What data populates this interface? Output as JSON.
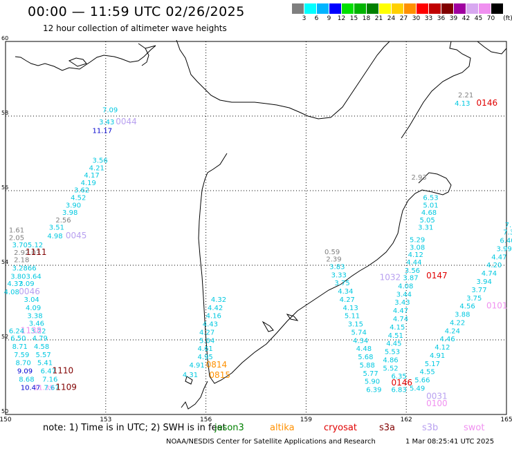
{
  "header": {
    "title": "00:00 — 11:59 UTC 02/26/2025",
    "subtitle": "12 hour collection of altimeter wave heights"
  },
  "color_scale": {
    "unit": "(ft)",
    "bins": [
      {
        "label": "3",
        "color": "#7f7f7f"
      },
      {
        "label": "6",
        "color": "#00ffff"
      },
      {
        "label": "9",
        "color": "#00b4ff"
      },
      {
        "label": "12",
        "color": "#0000ff"
      },
      {
        "label": "15",
        "color": "#00e000"
      },
      {
        "label": "18",
        "color": "#00b400"
      },
      {
        "label": "21",
        "color": "#008000"
      },
      {
        "label": "24",
        "color": "#ffff00"
      },
      {
        "label": "27",
        "color": "#ffd000"
      },
      {
        "label": "30",
        "color": "#ff9000"
      },
      {
        "label": "33",
        "color": "#ff0000"
      },
      {
        "label": "36",
        "color": "#c00000"
      },
      {
        "label": "39",
        "color": "#800000"
      },
      {
        "label": "42",
        "color": "#a000a0"
      },
      {
        "label": "45",
        "color": "#d8a8f0"
      },
      {
        "label": "70",
        "color": "#f090f0"
      },
      {
        "label": "",
        "color": "#000000"
      }
    ]
  },
  "axes": {
    "lon_labels": [
      "150",
      "153",
      "156",
      "159",
      "162",
      "165"
    ],
    "lat_labels": [
      "60",
      "58",
      "56",
      "54",
      "52",
      "50"
    ]
  },
  "observations": [
    {
      "text": "7.09",
      "lon": 152.9,
      "lat": 58.1,
      "color": "#00c8e0"
    },
    {
      "text": "3.43",
      "lon": 152.8,
      "lat": 57.78,
      "color": "#00c8e0"
    },
    {
      "text": "0044",
      "lon": 153.3,
      "lat": 57.78,
      "color": "#b8a0f0"
    },
    {
      "text": "11.17",
      "lon": 152.6,
      "lat": 57.55,
      "color": "#0000d0"
    },
    {
      "text": "3.56",
      "lon": 152.6,
      "lat": 56.75,
      "color": "#00c8e0"
    },
    {
      "text": "4.21",
      "lon": 152.5,
      "lat": 56.55,
      "color": "#00c8e0"
    },
    {
      "text": "4.17",
      "lon": 152.35,
      "lat": 56.35,
      "color": "#00c8e0"
    },
    {
      "text": "4.19",
      "lon": 152.25,
      "lat": 56.15,
      "color": "#00c8e0"
    },
    {
      "text": "3.62",
      "lon": 152.05,
      "lat": 55.95,
      "color": "#00c8e0"
    },
    {
      "text": "4.52",
      "lon": 151.95,
      "lat": 55.75,
      "color": "#00c8e0"
    },
    {
      "text": "3.90",
      "lon": 151.8,
      "lat": 55.55,
      "color": "#00c8e0"
    },
    {
      "text": "3.98",
      "lon": 151.7,
      "lat": 55.35,
      "color": "#00c8e0"
    },
    {
      "text": "2.56",
      "lon": 151.5,
      "lat": 55.15,
      "color": "#808080"
    },
    {
      "text": "3.51",
      "lon": 151.3,
      "lat": 54.95,
      "color": "#00c8e0"
    },
    {
      "text": "4.98",
      "lon": 151.25,
      "lat": 54.72,
      "color": "#00c8e0"
    },
    {
      "text": "0045",
      "lon": 151.8,
      "lat": 54.72,
      "color": "#b8a0f0"
    },
    {
      "text": "1.61",
      "lon": 150.1,
      "lat": 54.88,
      "color": "#808080"
    },
    {
      "text": "2.05",
      "lon": 150.1,
      "lat": 54.68,
      "color": "#808080"
    },
    {
      "text": "3.705.12",
      "lon": 150.2,
      "lat": 54.48,
      "color": "#00c8e0"
    },
    {
      "text": "2.92.03",
      "lon": 150.25,
      "lat": 54.28,
      "color": "#808080"
    },
    {
      "text": "1111",
      "lon": 150.6,
      "lat": 54.28,
      "color": "#800000"
    },
    {
      "text": "2.18",
      "lon": 150.25,
      "lat": 54.08,
      "color": "#808080"
    },
    {
      "text": "3.2866",
      "lon": 150.2,
      "lat": 53.86,
      "color": "#00c8e0"
    },
    {
      "text": "3.803.64",
      "lon": 150.15,
      "lat": 53.64,
      "color": "#00c8e0"
    },
    {
      "text": "4.37",
      "lon": 150.05,
      "lat": 53.44,
      "color": "#00c8e0"
    },
    {
      "text": "3.09",
      "lon": 150.4,
      "lat": 53.44,
      "color": "#00c8e0"
    },
    {
      "text": "4.08",
      "lon": 149.95,
      "lat": 53.22,
      "color": "#00c8e0"
    },
    {
      "text": "0046",
      "lon": 150.4,
      "lat": 53.22,
      "color": "#b8a0f0"
    },
    {
      "text": "3.04",
      "lon": 150.55,
      "lat": 53.02,
      "color": "#00c8e0"
    },
    {
      "text": "4.09",
      "lon": 150.6,
      "lat": 52.8,
      "color": "#00c8e0"
    },
    {
      "text": "3.38",
      "lon": 150.65,
      "lat": 52.58,
      "color": "#00c8e0"
    },
    {
      "text": "3.46",
      "lon": 150.7,
      "lat": 52.38,
      "color": "#00c8e0"
    },
    {
      "text": "3.22",
      "lon": 150.75,
      "lat": 52.18,
      "color": "#00c8e0"
    },
    {
      "text": "1138",
      "lon": 150.45,
      "lat": 52.18,
      "color": "#f090f0"
    },
    {
      "text": "6.24",
      "lon": 150.1,
      "lat": 52.18,
      "color": "#00c8e0"
    },
    {
      "text": "6.50",
      "lon": 150.15,
      "lat": 51.98,
      "color": "#00c8e0"
    },
    {
      "text": "4.79",
      "lon": 150.8,
      "lat": 51.98,
      "color": "#00c8e0"
    },
    {
      "text": "8.71",
      "lon": 150.2,
      "lat": 51.76,
      "color": "#00c8e0"
    },
    {
      "text": "4.58",
      "lon": 150.85,
      "lat": 51.76,
      "color": "#00c8e0"
    },
    {
      "text": "7.59",
      "lon": 150.25,
      "lat": 51.54,
      "color": "#00c8e0"
    },
    {
      "text": "5.57",
      "lon": 150.9,
      "lat": 51.54,
      "color": "#00c8e0"
    },
    {
      "text": "8.70",
      "lon": 150.3,
      "lat": 51.32,
      "color": "#00c8e0"
    },
    {
      "text": "5.41",
      "lon": 150.95,
      "lat": 51.32,
      "color": "#00c8e0"
    },
    {
      "text": "9.09",
      "lon": 150.35,
      "lat": 51.1,
      "color": "#0000d0"
    },
    {
      "text": "6.47",
      "lon": 151.05,
      "lat": 51.1,
      "color": "#00c8e0"
    },
    {
      "text": "1110",
      "lon": 151.4,
      "lat": 51.1,
      "color": "#800000"
    },
    {
      "text": "8.68",
      "lon": 150.4,
      "lat": 50.88,
      "color": "#00c8e0"
    },
    {
      "text": "7.16",
      "lon": 151.1,
      "lat": 50.88,
      "color": "#00c8e0"
    },
    {
      "text": "10.47",
      "lon": 150.45,
      "lat": 50.66,
      "color": "#0000d0"
    },
    {
      "text": "11.39",
      "lon": 150.85,
      "lat": 50.66,
      "color": "#f090f0"
    },
    {
      "text": "7.67",
      "lon": 151.15,
      "lat": 50.66,
      "color": "#00c8e0"
    },
    {
      "text": "1109",
      "lon": 151.5,
      "lat": 50.66,
      "color": "#800000"
    },
    {
      "text": "4.32",
      "lon": 156.15,
      "lat": 53.02,
      "color": "#00c8e0"
    },
    {
      "text": "4.42",
      "lon": 156.05,
      "lat": 52.8,
      "color": "#00c8e0"
    },
    {
      "text": "4.16",
      "lon": 156.0,
      "lat": 52.58,
      "color": "#00c8e0"
    },
    {
      "text": "4.43",
      "lon": 155.9,
      "lat": 52.36,
      "color": "#00c8e0"
    },
    {
      "text": "4.27",
      "lon": 155.8,
      "lat": 52.14,
      "color": "#00c8e0"
    },
    {
      "text": "5.04",
      "lon": 155.8,
      "lat": 51.92,
      "color": "#00c8e0"
    },
    {
      "text": "4.61",
      "lon": 155.75,
      "lat": 51.7,
      "color": "#00c8e0"
    },
    {
      "text": "4.95",
      "lon": 155.75,
      "lat": 51.48,
      "color": "#00c8e0"
    },
    {
      "text": "4.91",
      "lon": 155.5,
      "lat": 51.26,
      "color": "#00c8e0"
    },
    {
      "text": "0814",
      "lon": 156.0,
      "lat": 51.26,
      "color": "#ff9000"
    },
    {
      "text": "4.31",
      "lon": 155.3,
      "lat": 51.0,
      "color": "#00c8e0"
    },
    {
      "text": "0815",
      "lon": 156.1,
      "lat": 50.98,
      "color": "#ff9000"
    },
    {
      "text": "6.53",
      "lon": 162.5,
      "lat": 55.75,
      "color": "#00c8e0"
    },
    {
      "text": "5.01",
      "lon": 162.5,
      "lat": 55.55,
      "color": "#00c8e0"
    },
    {
      "text": "4.68",
      "lon": 162.45,
      "lat": 55.35,
      "color": "#00c8e0"
    },
    {
      "text": "5.05",
      "lon": 162.4,
      "lat": 55.15,
      "color": "#00c8e0"
    },
    {
      "text": "3.31",
      "lon": 162.35,
      "lat": 54.95,
      "color": "#00c8e0"
    },
    {
      "text": "5.29",
      "lon": 162.1,
      "lat": 54.62,
      "color": "#00c8e0"
    },
    {
      "text": "3.08",
      "lon": 162.1,
      "lat": 54.42,
      "color": "#00c8e0"
    },
    {
      "text": "4.12",
      "lon": 162.05,
      "lat": 54.22,
      "color": "#00c8e0"
    },
    {
      "text": "4.44",
      "lon": 162.0,
      "lat": 54.02,
      "color": "#00c8e0"
    },
    {
      "text": "3.56",
      "lon": 161.95,
      "lat": 53.8,
      "color": "#00c8e0"
    },
    {
      "text": "1032",
      "lon": 161.2,
      "lat": 53.6,
      "color": "#b8a0f0"
    },
    {
      "text": "3.87",
      "lon": 161.9,
      "lat": 53.6,
      "color": "#00c8e0"
    },
    {
      "text": "0147",
      "lon": 162.6,
      "lat": 53.65,
      "color": "#e00000"
    },
    {
      "text": "4.08",
      "lon": 161.75,
      "lat": 53.38,
      "color": "#00c8e0"
    },
    {
      "text": "3.44",
      "lon": 161.7,
      "lat": 53.16,
      "color": "#00c8e0"
    },
    {
      "text": "3.43",
      "lon": 161.65,
      "lat": 52.94,
      "color": "#00c8e0"
    },
    {
      "text": "4.47",
      "lon": 161.6,
      "lat": 52.72,
      "color": "#00c8e0"
    },
    {
      "text": "4.74",
      "lon": 161.6,
      "lat": 52.5,
      "color": "#00c8e0"
    },
    {
      "text": "4.15",
      "lon": 161.5,
      "lat": 52.28,
      "color": "#00c8e0"
    },
    {
      "text": "4.51",
      "lon": 161.45,
      "lat": 52.06,
      "color": "#00c8e0"
    },
    {
      "text": "4.45",
      "lon": 161.4,
      "lat": 51.84,
      "color": "#00c8e0"
    },
    {
      "text": "5.53",
      "lon": 161.35,
      "lat": 51.62,
      "color": "#00c8e0"
    },
    {
      "text": "4.86",
      "lon": 161.3,
      "lat": 51.4,
      "color": "#00c8e0"
    },
    {
      "text": "5.52",
      "lon": 161.3,
      "lat": 51.18,
      "color": "#00c8e0"
    },
    {
      "text": "6.35",
      "lon": 161.55,
      "lat": 50.96,
      "color": "#00c8e0"
    },
    {
      "text": "0146",
      "lon": 161.55,
      "lat": 50.78,
      "color": "#e00000"
    },
    {
      "text": "6.83",
      "lon": 161.55,
      "lat": 50.6,
      "color": "#00c8e0"
    },
    {
      "text": "0.59",
      "lon": 159.55,
      "lat": 54.3,
      "color": "#808080"
    },
    {
      "text": "2.39",
      "lon": 159.6,
      "lat": 54.1,
      "color": "#808080"
    },
    {
      "text": "3.83",
      "lon": 159.7,
      "lat": 53.9,
      "color": "#00c8e0"
    },
    {
      "text": "3.33",
      "lon": 159.75,
      "lat": 53.68,
      "color": "#00c8e0"
    },
    {
      "text": "3.75",
      "lon": 159.85,
      "lat": 53.46,
      "color": "#00c8e0"
    },
    {
      "text": "4.34",
      "lon": 159.95,
      "lat": 53.24,
      "color": "#00c8e0"
    },
    {
      "text": "4.27",
      "lon": 160.0,
      "lat": 53.02,
      "color": "#00c8e0"
    },
    {
      "text": "4.13",
      "lon": 160.1,
      "lat": 52.8,
      "color": "#00c8e0"
    },
    {
      "text": "5.11",
      "lon": 160.15,
      "lat": 52.58,
      "color": "#00c8e0"
    },
    {
      "text": "3.15",
      "lon": 160.25,
      "lat": 52.36,
      "color": "#00c8e0"
    },
    {
      "text": "5.74",
      "lon": 160.35,
      "lat": 52.14,
      "color": "#00c8e0"
    },
    {
      "text": "4.34",
      "lon": 160.4,
      "lat": 51.92,
      "color": "#00c8e0"
    },
    {
      "text": "4.48",
      "lon": 160.5,
      "lat": 51.7,
      "color": "#00c8e0"
    },
    {
      "text": "5.68",
      "lon": 160.55,
      "lat": 51.48,
      "color": "#00c8e0"
    },
    {
      "text": "5.88",
      "lon": 160.6,
      "lat": 51.26,
      "color": "#00c8e0"
    },
    {
      "text": "5.77",
      "lon": 160.7,
      "lat": 51.04,
      "color": "#00c8e0"
    },
    {
      "text": "5.90",
      "lon": 160.75,
      "lat": 50.82,
      "color": "#00c8e0"
    },
    {
      "text": "6.39",
      "lon": 160.8,
      "lat": 50.6,
      "color": "#00c8e0"
    },
    {
      "text": "2.21",
      "lon": 163.55,
      "lat": 58.5,
      "color": "#808080"
    },
    {
      "text": "4.13",
      "lon": 163.45,
      "lat": 58.28,
      "color": "#00c8e0"
    },
    {
      "text": "0146",
      "lon": 164.1,
      "lat": 58.28,
      "color": "#e00000"
    },
    {
      "text": "2.93",
      "lon": 162.15,
      "lat": 56.3,
      "color": "#808080"
    },
    {
      "text": "7.",
      "lon": 164.95,
      "lat": 55.02,
      "color": "#00c8e0"
    },
    {
      "text": "7.3",
      "lon": 164.9,
      "lat": 54.82,
      "color": "#00c8e0"
    },
    {
      "text": "6.40",
      "lon": 164.8,
      "lat": 54.6,
      "color": "#00c8e0"
    },
    {
      "text": "3.99",
      "lon": 164.7,
      "lat": 54.38,
      "color": "#00c8e0"
    },
    {
      "text": "4.47",
      "lon": 164.55,
      "lat": 54.16,
      "color": "#00c8e0"
    },
    {
      "text": "4.20",
      "lon": 164.4,
      "lat": 53.94,
      "color": "#00c8e0"
    },
    {
      "text": "4.74",
      "lon": 164.25,
      "lat": 53.72,
      "color": "#00c8e0"
    },
    {
      "text": "3.94",
      "lon": 164.1,
      "lat": 53.5,
      "color": "#00c8e0"
    },
    {
      "text": "3.77",
      "lon": 163.95,
      "lat": 53.28,
      "color": "#00c8e0"
    },
    {
      "text": "3.75",
      "lon": 163.8,
      "lat": 53.06,
      "color": "#00c8e0"
    },
    {
      "text": "4.56",
      "lon": 163.6,
      "lat": 52.84,
      "color": "#00c8e0"
    },
    {
      "text": "0101",
      "lon": 164.4,
      "lat": 52.84,
      "color": "#f090f0"
    },
    {
      "text": "3.88",
      "lon": 163.45,
      "lat": 52.62,
      "color": "#00c8e0"
    },
    {
      "text": "4.22",
      "lon": 163.3,
      "lat": 52.4,
      "color": "#00c8e0"
    },
    {
      "text": "4.24",
      "lon": 163.15,
      "lat": 52.18,
      "color": "#00c8e0"
    },
    {
      "text": "4.46",
      "lon": 163.0,
      "lat": 51.96,
      "color": "#00c8e0"
    },
    {
      "text": "4.12",
      "lon": 162.85,
      "lat": 51.74,
      "color": "#00c8e0"
    },
    {
      "text": "4.91",
      "lon": 162.7,
      "lat": 51.52,
      "color": "#00c8e0"
    },
    {
      "text": "5.17",
      "lon": 162.55,
      "lat": 51.3,
      "color": "#00c8e0"
    },
    {
      "text": "4.55",
      "lon": 162.4,
      "lat": 51.08,
      "color": "#00c8e0"
    },
    {
      "text": "5.66",
      "lon": 162.25,
      "lat": 50.86,
      "color": "#00c8e0"
    },
    {
      "text": "5.49",
      "lon": 162.1,
      "lat": 50.64,
      "color": "#00c8e0"
    },
    {
      "text": "0031",
      "lon": 162.6,
      "lat": 50.42,
      "color": "#b8a0f0"
    },
    {
      "text": "0100",
      "lon": 162.6,
      "lat": 50.22,
      "color": "#f090f0"
    }
  ],
  "footer": {
    "note": "note:  1) Time is in UTC; 2) SWH is in feet",
    "satellites": [
      {
        "name": "jason3",
        "color": "#008000"
      },
      {
        "name": "altika",
        "color": "#ff9000"
      },
      {
        "name": "cryosat",
        "color": "#e00000"
      },
      {
        "name": "s3a",
        "color": "#800000"
      },
      {
        "name": "s3b",
        "color": "#b8a0f0"
      },
      {
        "name": "swot",
        "color": "#f090f0"
      }
    ],
    "credit": "NOAA/NESDIS Center for Satellite Applications and Research",
    "generated": "1 Mar 08:25:41 UTC 2025"
  }
}
